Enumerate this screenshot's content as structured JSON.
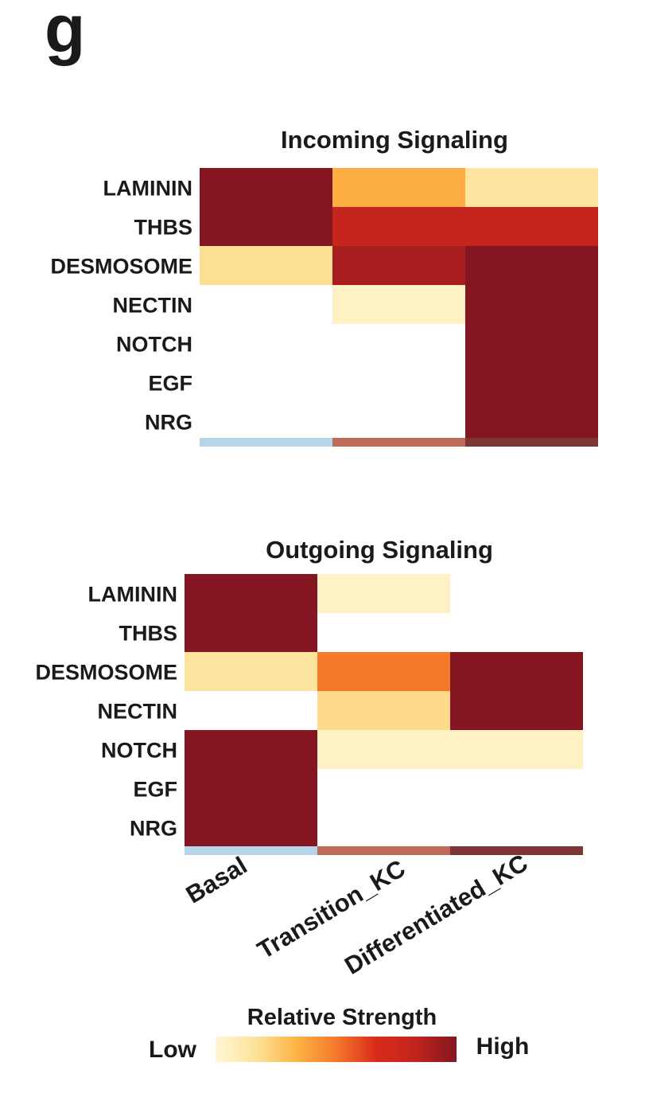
{
  "panel_letter": "g",
  "colors": {
    "scale": [
      "#fff7d4",
      "#fde39a",
      "#fdb446",
      "#f5792a",
      "#d92b1a",
      "#c0241d",
      "#841621"
    ],
    "group_bar": [
      "#b7d5e8",
      "#c06a58",
      "#7d3534"
    ]
  },
  "chart_data": [
    {
      "type": "heatmap",
      "title": "Incoming Signaling",
      "rows": [
        "LAMININ",
        "THBS",
        "DESMOSOME",
        "NECTIN",
        "NOTCH",
        "EGF",
        "NRG"
      ],
      "columns": [
        "Basal",
        "Transition_KC",
        "Differentiated_KC"
      ],
      "values": [
        [
          1.0,
          0.35,
          0.15
        ],
        [
          1.0,
          0.8,
          0.8
        ],
        [
          0.18,
          0.9,
          1.0
        ],
        [
          null,
          0.05,
          1.0
        ],
        [
          null,
          null,
          1.0
        ],
        [
          null,
          null,
          1.0
        ],
        [
          null,
          null,
          1.0
        ]
      ]
    },
    {
      "type": "heatmap",
      "title": "Outgoing Signaling",
      "rows": [
        "LAMININ",
        "THBS",
        "DESMOSOME",
        "NECTIN",
        "NOTCH",
        "EGF",
        "NRG"
      ],
      "columns": [
        "Basal",
        "Transition_KC",
        "Differentiated_KC"
      ],
      "values": [
        [
          1.0,
          0.05,
          null
        ],
        [
          1.0,
          null,
          null
        ],
        [
          0.15,
          0.5,
          1.0
        ],
        [
          null,
          0.2,
          1.0
        ],
        [
          1.0,
          0.05,
          0.05
        ],
        [
          1.0,
          null,
          null
        ],
        [
          1.0,
          null,
          null
        ]
      ]
    }
  ],
  "legend": {
    "title": "Relative Strength",
    "low_label": "Low",
    "high_label": "High",
    "range": [
      0,
      1
    ]
  }
}
